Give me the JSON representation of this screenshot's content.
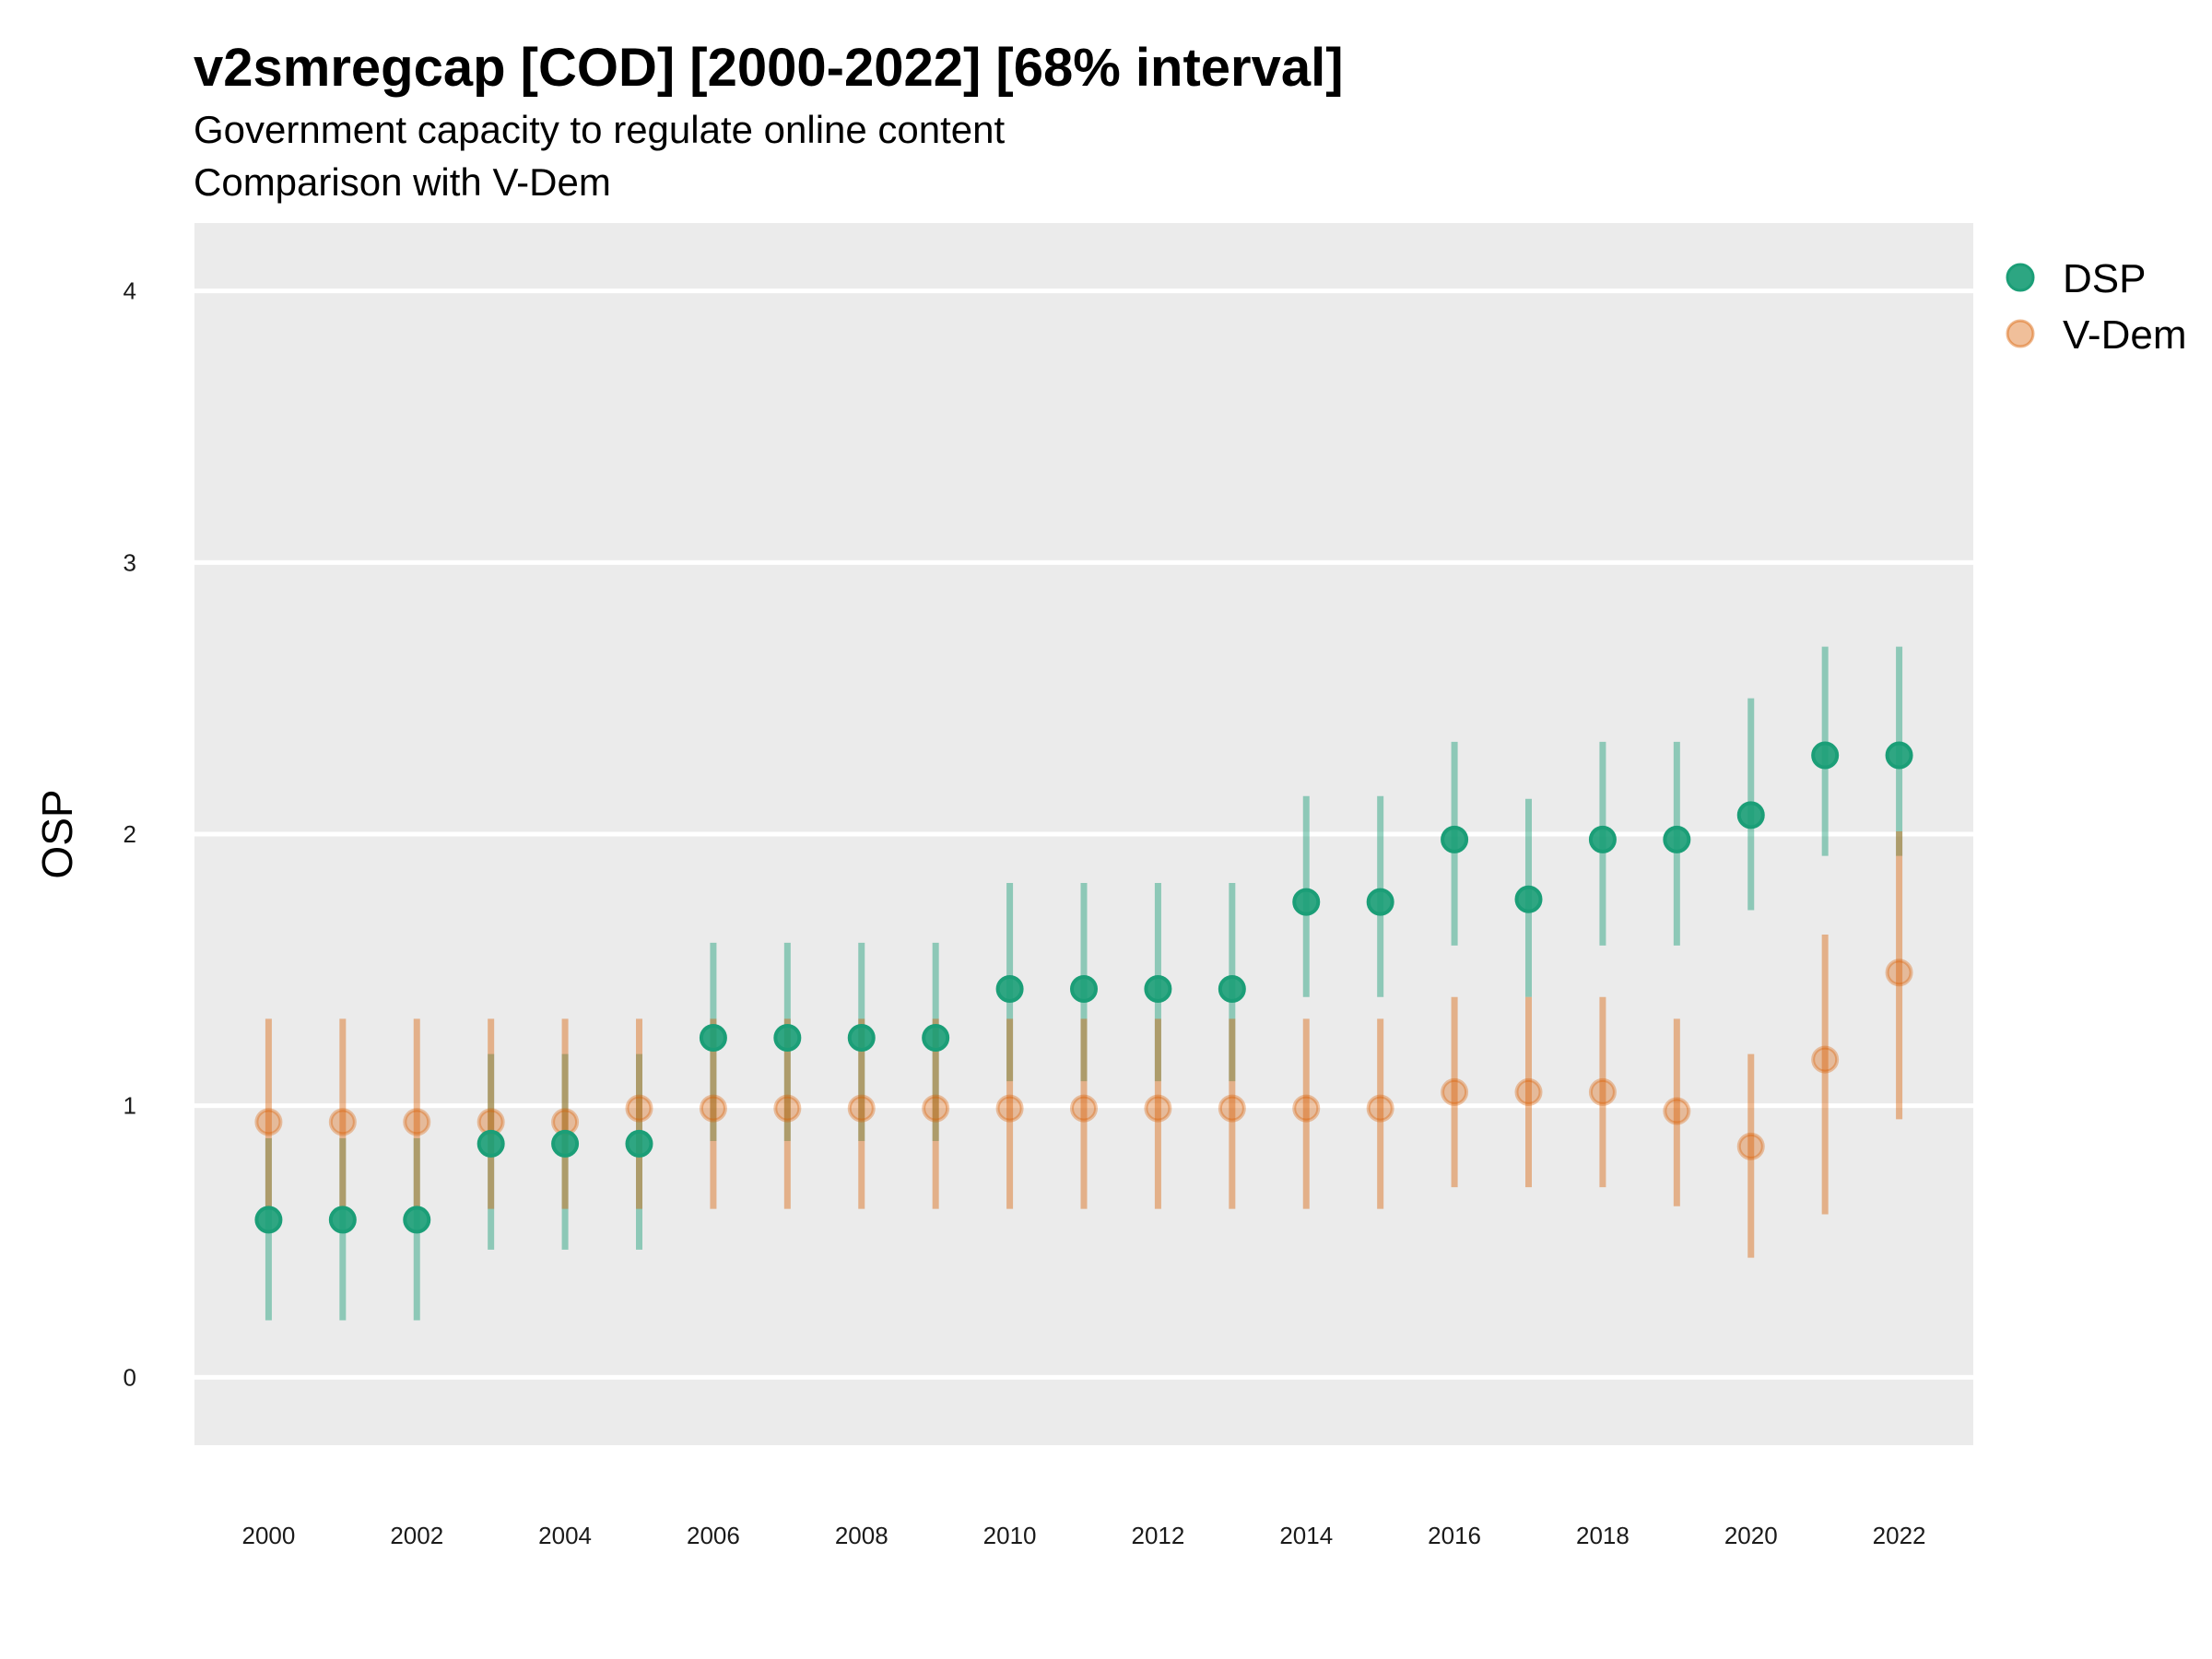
{
  "chart_data": {
    "type": "scatter",
    "title": "v2smregcap [COD] [2000-2022] [68% interval]",
    "subtitle": [
      "Government capacity to regulate online content",
      "Comparison with V-Dem"
    ],
    "ylabel": "OSP",
    "xlabel": "",
    "ylim": [
      -0.25,
      4.25
    ],
    "xlim": [
      1999,
      2023
    ],
    "yticks": [
      0,
      1,
      2,
      3,
      4
    ],
    "xticks": [
      2000,
      2002,
      2004,
      2006,
      2008,
      2010,
      2012,
      2014,
      2016,
      2018,
      2020,
      2022
    ],
    "grid": true,
    "legend_position": "right",
    "x": [
      2000,
      2001,
      2002,
      2003,
      2004,
      2005,
      2006,
      2007,
      2008,
      2009,
      2010,
      2011,
      2012,
      2013,
      2014,
      2015,
      2016,
      2017,
      2018,
      2019,
      2020,
      2021,
      2022
    ],
    "series": [
      {
        "name": "DSP",
        "color": "#1b9e77",
        "values": [
          0.58,
          0.58,
          0.58,
          0.86,
          0.86,
          0.86,
          1.25,
          1.25,
          1.25,
          1.25,
          1.43,
          1.43,
          1.43,
          1.43,
          1.75,
          1.75,
          1.98,
          1.76,
          1.98,
          1.98,
          2.07,
          2.29,
          2.29
        ],
        "lower": [
          0.21,
          0.21,
          0.21,
          0.47,
          0.47,
          0.47,
          0.87,
          0.87,
          0.87,
          0.87,
          1.09,
          1.09,
          1.09,
          1.09,
          1.4,
          1.4,
          1.59,
          1.4,
          1.59,
          1.59,
          1.72,
          1.92,
          1.92
        ],
        "upper": [
          0.88,
          0.88,
          0.88,
          1.19,
          1.19,
          1.19,
          1.6,
          1.6,
          1.6,
          1.6,
          1.82,
          1.82,
          1.82,
          1.82,
          2.14,
          2.14,
          2.34,
          2.13,
          2.34,
          2.34,
          2.5,
          2.69,
          2.69
        ]
      },
      {
        "name": "V-Dem",
        "color": "#d95f02",
        "values": [
          0.94,
          0.94,
          0.94,
          0.94,
          0.94,
          0.99,
          0.99,
          0.99,
          0.99,
          0.99,
          0.99,
          0.99,
          0.99,
          0.99,
          0.99,
          0.99,
          1.05,
          1.05,
          1.05,
          0.98,
          0.85,
          1.17,
          1.49
        ],
        "lower": [
          0.62,
          0.62,
          0.62,
          0.62,
          0.62,
          0.62,
          0.62,
          0.62,
          0.62,
          0.62,
          0.62,
          0.62,
          0.62,
          0.62,
          0.62,
          0.62,
          0.7,
          0.7,
          0.7,
          0.63,
          0.44,
          0.6,
          0.95
        ],
        "upper": [
          1.32,
          1.32,
          1.32,
          1.32,
          1.32,
          1.32,
          1.32,
          1.32,
          1.32,
          1.32,
          1.32,
          1.32,
          1.32,
          1.32,
          1.32,
          1.32,
          1.4,
          1.4,
          1.4,
          1.32,
          1.19,
          1.63,
          2.01
        ]
      }
    ]
  },
  "colors": {
    "panel_background": "#ebebeb",
    "grid": "#ffffff",
    "dsp": "#1b9e77",
    "vdem": "#d95f02"
  }
}
